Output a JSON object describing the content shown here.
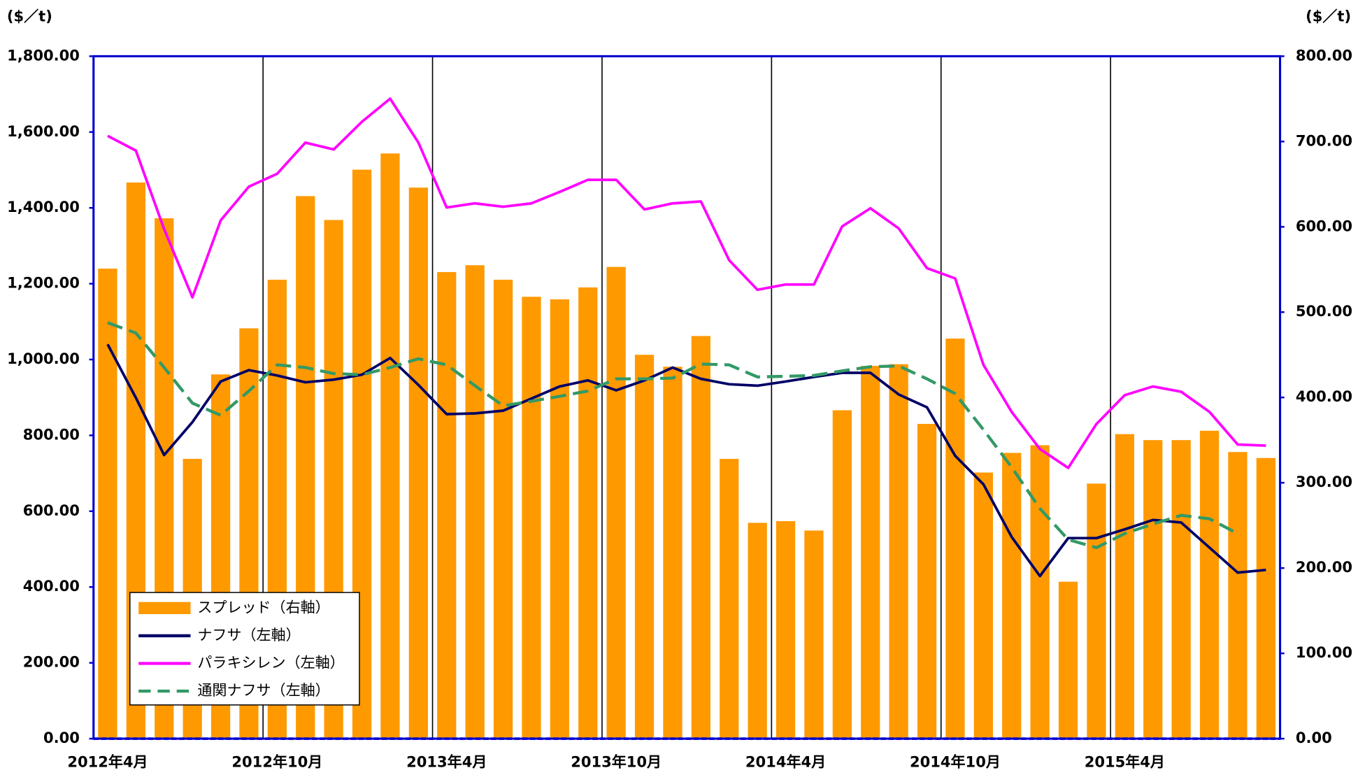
{
  "chart_data": {
    "type": "bar_line",
    "y_axis_label": "($／t)",
    "y2_axis_label": "($／t)",
    "categories": [
      "2012年4月",
      null,
      null,
      null,
      null,
      null,
      "2012年10月",
      null,
      null,
      null,
      null,
      null,
      "2013年4月",
      null,
      null,
      null,
      null,
      null,
      "2013年10月",
      null,
      null,
      null,
      null,
      null,
      "2014年4月",
      null,
      null,
      null,
      null,
      null,
      "2014年10月",
      null,
      null,
      null,
      null,
      null,
      "2015年4月",
      null,
      null,
      null,
      null,
      null
    ],
    "series": [
      {
        "name": "スプレッド（右軸）",
        "type": "bar",
        "axis": "y2",
        "color": "#ff9900",
        "values": [
          551,
          652,
          610,
          328,
          427,
          481,
          538,
          636,
          608,
          667,
          686,
          646,
          547,
          555,
          538,
          518,
          515,
          529,
          553,
          450,
          436,
          472,
          328,
          253,
          255,
          244,
          385,
          437,
          439,
          369,
          469,
          312,
          335,
          344,
          184,
          299,
          357,
          350,
          350,
          361,
          336,
          329
        ]
      },
      {
        "name": "ナフサ（左軸）",
        "type": "line",
        "axis": "y",
        "color": "#000066",
        "style": "solid",
        "values": [
          1040,
          899,
          748,
          835,
          942,
          972,
          958,
          940,
          947,
          960,
          1004,
          933,
          856,
          858,
          865,
          897,
          929,
          945,
          919,
          945,
          979,
          949,
          935,
          931,
          942,
          954,
          965,
          965,
          908,
          874,
          746,
          671,
          532,
          429,
          529,
          529,
          552,
          577,
          570,
          504,
          438,
          445
        ]
      },
      {
        "name": "パラキシレン（左軸）",
        "type": "line",
        "axis": "y",
        "color": "#ff00ff",
        "style": "solid",
        "values": [
          1590,
          1551,
          1344,
          1164,
          1367,
          1456,
          1490,
          1572,
          1554,
          1627,
          1688,
          1572,
          1401,
          1412,
          1403,
          1412,
          1442,
          1474,
          1474,
          1396,
          1412,
          1417,
          1262,
          1184,
          1198,
          1198,
          1351,
          1399,
          1346,
          1241,
          1214,
          986,
          862,
          764,
          714,
          830,
          906,
          929,
          915,
          862,
          776,
          773
        ]
      },
      {
        "name": "通関ナフサ（左軸）",
        "type": "line",
        "axis": "y",
        "color": "#339966",
        "style": "dashed",
        "values": [
          1097,
          1070,
          979,
          885,
          853,
          917,
          986,
          979,
          963,
          960,
          979,
          1002,
          986,
          931,
          878,
          890,
          903,
          917,
          949,
          949,
          951,
          988,
          986,
          954,
          956,
          958,
          970,
          981,
          983,
          949,
          910,
          815,
          716,
          607,
          525,
          504,
          541,
          566,
          589,
          580,
          541,
          null
        ]
      }
    ],
    "ylim": [
      0,
      1800
    ],
    "yticks": [
      {
        "value": 0,
        "label": "0.00"
      },
      {
        "value": 200,
        "label": "200.00"
      },
      {
        "value": 400,
        "label": "400.00"
      },
      {
        "value": 600,
        "label": "600.00"
      },
      {
        "value": 800,
        "label": "800.00"
      },
      {
        "value": 1000,
        "label": "1,000.00"
      },
      {
        "value": 1200,
        "label": "1,200.00"
      },
      {
        "value": 1400,
        "label": "1,400.00"
      },
      {
        "value": 1600,
        "label": "1,600.00"
      },
      {
        "value": 1800,
        "label": "1,800.00"
      }
    ],
    "y2lim": [
      0,
      800
    ],
    "y2ticks": [
      {
        "value": 0,
        "label": "0.00"
      },
      {
        "value": 100,
        "label": "100.00"
      },
      {
        "value": 200,
        "label": "200.00"
      },
      {
        "value": 300,
        "label": "300.00"
      },
      {
        "value": 400,
        "label": "400.00"
      },
      {
        "value": 500,
        "label": "500.00"
      },
      {
        "value": 600,
        "label": "600.00"
      },
      {
        "value": 700,
        "label": "700.00"
      },
      {
        "value": 800,
        "label": "800.00"
      }
    ],
    "grid": "x",
    "legend": "lower left"
  }
}
